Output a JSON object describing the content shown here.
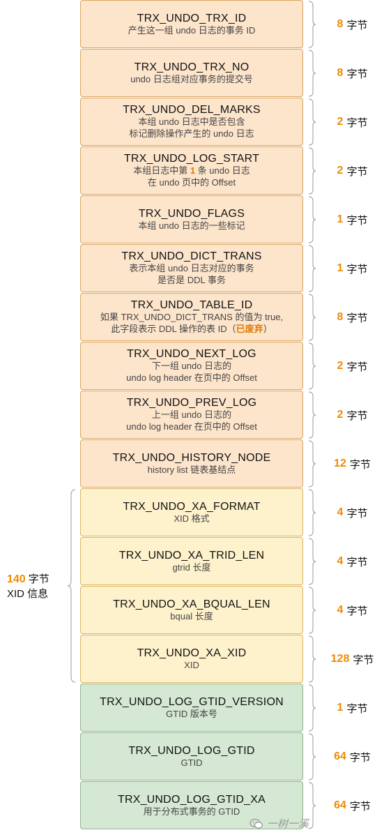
{
  "rows": [
    {
      "name": "TRX_UNDO_TRX_ID",
      "desc_lines": [
        {
          "pre": "产生这一组 undo 日志的事务 ID"
        }
      ],
      "size": "8",
      "unit": "字节",
      "group": "orange"
    },
    {
      "name": "TRX_UNDO_TRX_NO",
      "desc_lines": [
        {
          "pre": "undo 日志组对应事务的提交号"
        }
      ],
      "size": "8",
      "unit": "字节",
      "group": "orange"
    },
    {
      "name": "TRX_UNDO_DEL_MARKS",
      "desc_lines": [
        {
          "pre": "本组 undo 日志中是否包含"
        },
        {
          "pre": "标记删除操作产生的 undo 日志"
        }
      ],
      "size": "2",
      "unit": "字节",
      "group": "orange"
    },
    {
      "name": "TRX_UNDO_LOG_START",
      "desc_lines": [
        {
          "pre": "本组日志中第 ",
          "hl": "1",
          "post": " 条 undo 日志"
        },
        {
          "pre": "在 undo 页中的 Offset"
        }
      ],
      "size": "2",
      "unit": "字节",
      "group": "orange"
    },
    {
      "name": "TRX_UNDO_FLAGS",
      "desc_lines": [
        {
          "pre": "本组 undo 日志的一些标记"
        }
      ],
      "size": "1",
      "unit": "字节",
      "group": "orange"
    },
    {
      "name": "TRX_UNDO_DICT_TRANS",
      "desc_lines": [
        {
          "pre": "表示本组 undo 日志对应的事务"
        },
        {
          "pre": "是否是 DDL 事务"
        }
      ],
      "size": "1",
      "unit": "字节",
      "group": "orange"
    },
    {
      "name": "TRX_UNDO_TABLE_ID",
      "desc_lines": [
        {
          "pre": "如果 TRX_UNDO_DICT_TRANS 的值为 true,"
        },
        {
          "pre": "此字段表示 DDL 操作的表 ID（",
          "hl": "已废弃",
          "post": "）"
        }
      ],
      "size": "8",
      "unit": "字节",
      "group": "orange"
    },
    {
      "name": "TRX_UNDO_NEXT_LOG",
      "desc_lines": [
        {
          "pre": "下一组 undo 日志的"
        },
        {
          "pre": "undo log header 在页中的 Offset"
        }
      ],
      "size": "2",
      "unit": "字节",
      "group": "orange"
    },
    {
      "name": "TRX_UNDO_PREV_LOG",
      "desc_lines": [
        {
          "pre": "上一组 undo 日志的"
        },
        {
          "pre": "undo log header 在页中的 Offset"
        }
      ],
      "size": "2",
      "unit": "字节",
      "group": "orange"
    },
    {
      "name": "TRX_UNDO_HISTORY_NODE",
      "desc_lines": [
        {
          "pre": "history list 链表基结点"
        }
      ],
      "size": "12",
      "unit": "字节",
      "group": "orange"
    },
    {
      "name": "TRX_UNDO_XA_FORMAT",
      "desc_lines": [
        {
          "pre": "XID 格式"
        }
      ],
      "size": "4",
      "unit": "字节",
      "group": "yellow"
    },
    {
      "name": "TRX_UNDO_XA_TRID_LEN",
      "desc_lines": [
        {
          "pre": "gtrid 长度"
        }
      ],
      "size": "4",
      "unit": "字节",
      "group": "yellow"
    },
    {
      "name": "TRX_UNDO_XA_BQUAL_LEN",
      "desc_lines": [
        {
          "pre": "bqual 长度"
        }
      ],
      "size": "4",
      "unit": "字节",
      "group": "yellow"
    },
    {
      "name": "TRX_UNDO_XA_XID",
      "desc_lines": [
        {
          "pre": "XID"
        }
      ],
      "size": "128",
      "unit": "字节",
      "group": "yellow"
    },
    {
      "name": "TRX_UNDO_LOG_GTID_VERSION",
      "desc_lines": [
        {
          "pre": "GTID 版本号"
        }
      ],
      "size": "1",
      "unit": "字节",
      "group": "green"
    },
    {
      "name": "TRX_UNDO_LOG_GTID",
      "desc_lines": [
        {
          "pre": "GTID"
        }
      ],
      "size": "64",
      "unit": "字节",
      "group": "green"
    },
    {
      "name": "TRX_UNDO_LOG_GTID_XA",
      "desc_lines": [
        {
          "pre": "用于分布式事务的 GTID"
        }
      ],
      "size": "64",
      "unit": "字节",
      "group": "green"
    }
  ],
  "xid_group": {
    "size": "140",
    "unit": "字节",
    "label": "XID 信息"
  },
  "watermark": "一树一溪",
  "colors": {
    "orange_fill": "#fde5cc",
    "yellow_fill": "#fef2cc",
    "green_fill": "#d5e8d4",
    "number_highlight": "#f08a00"
  }
}
